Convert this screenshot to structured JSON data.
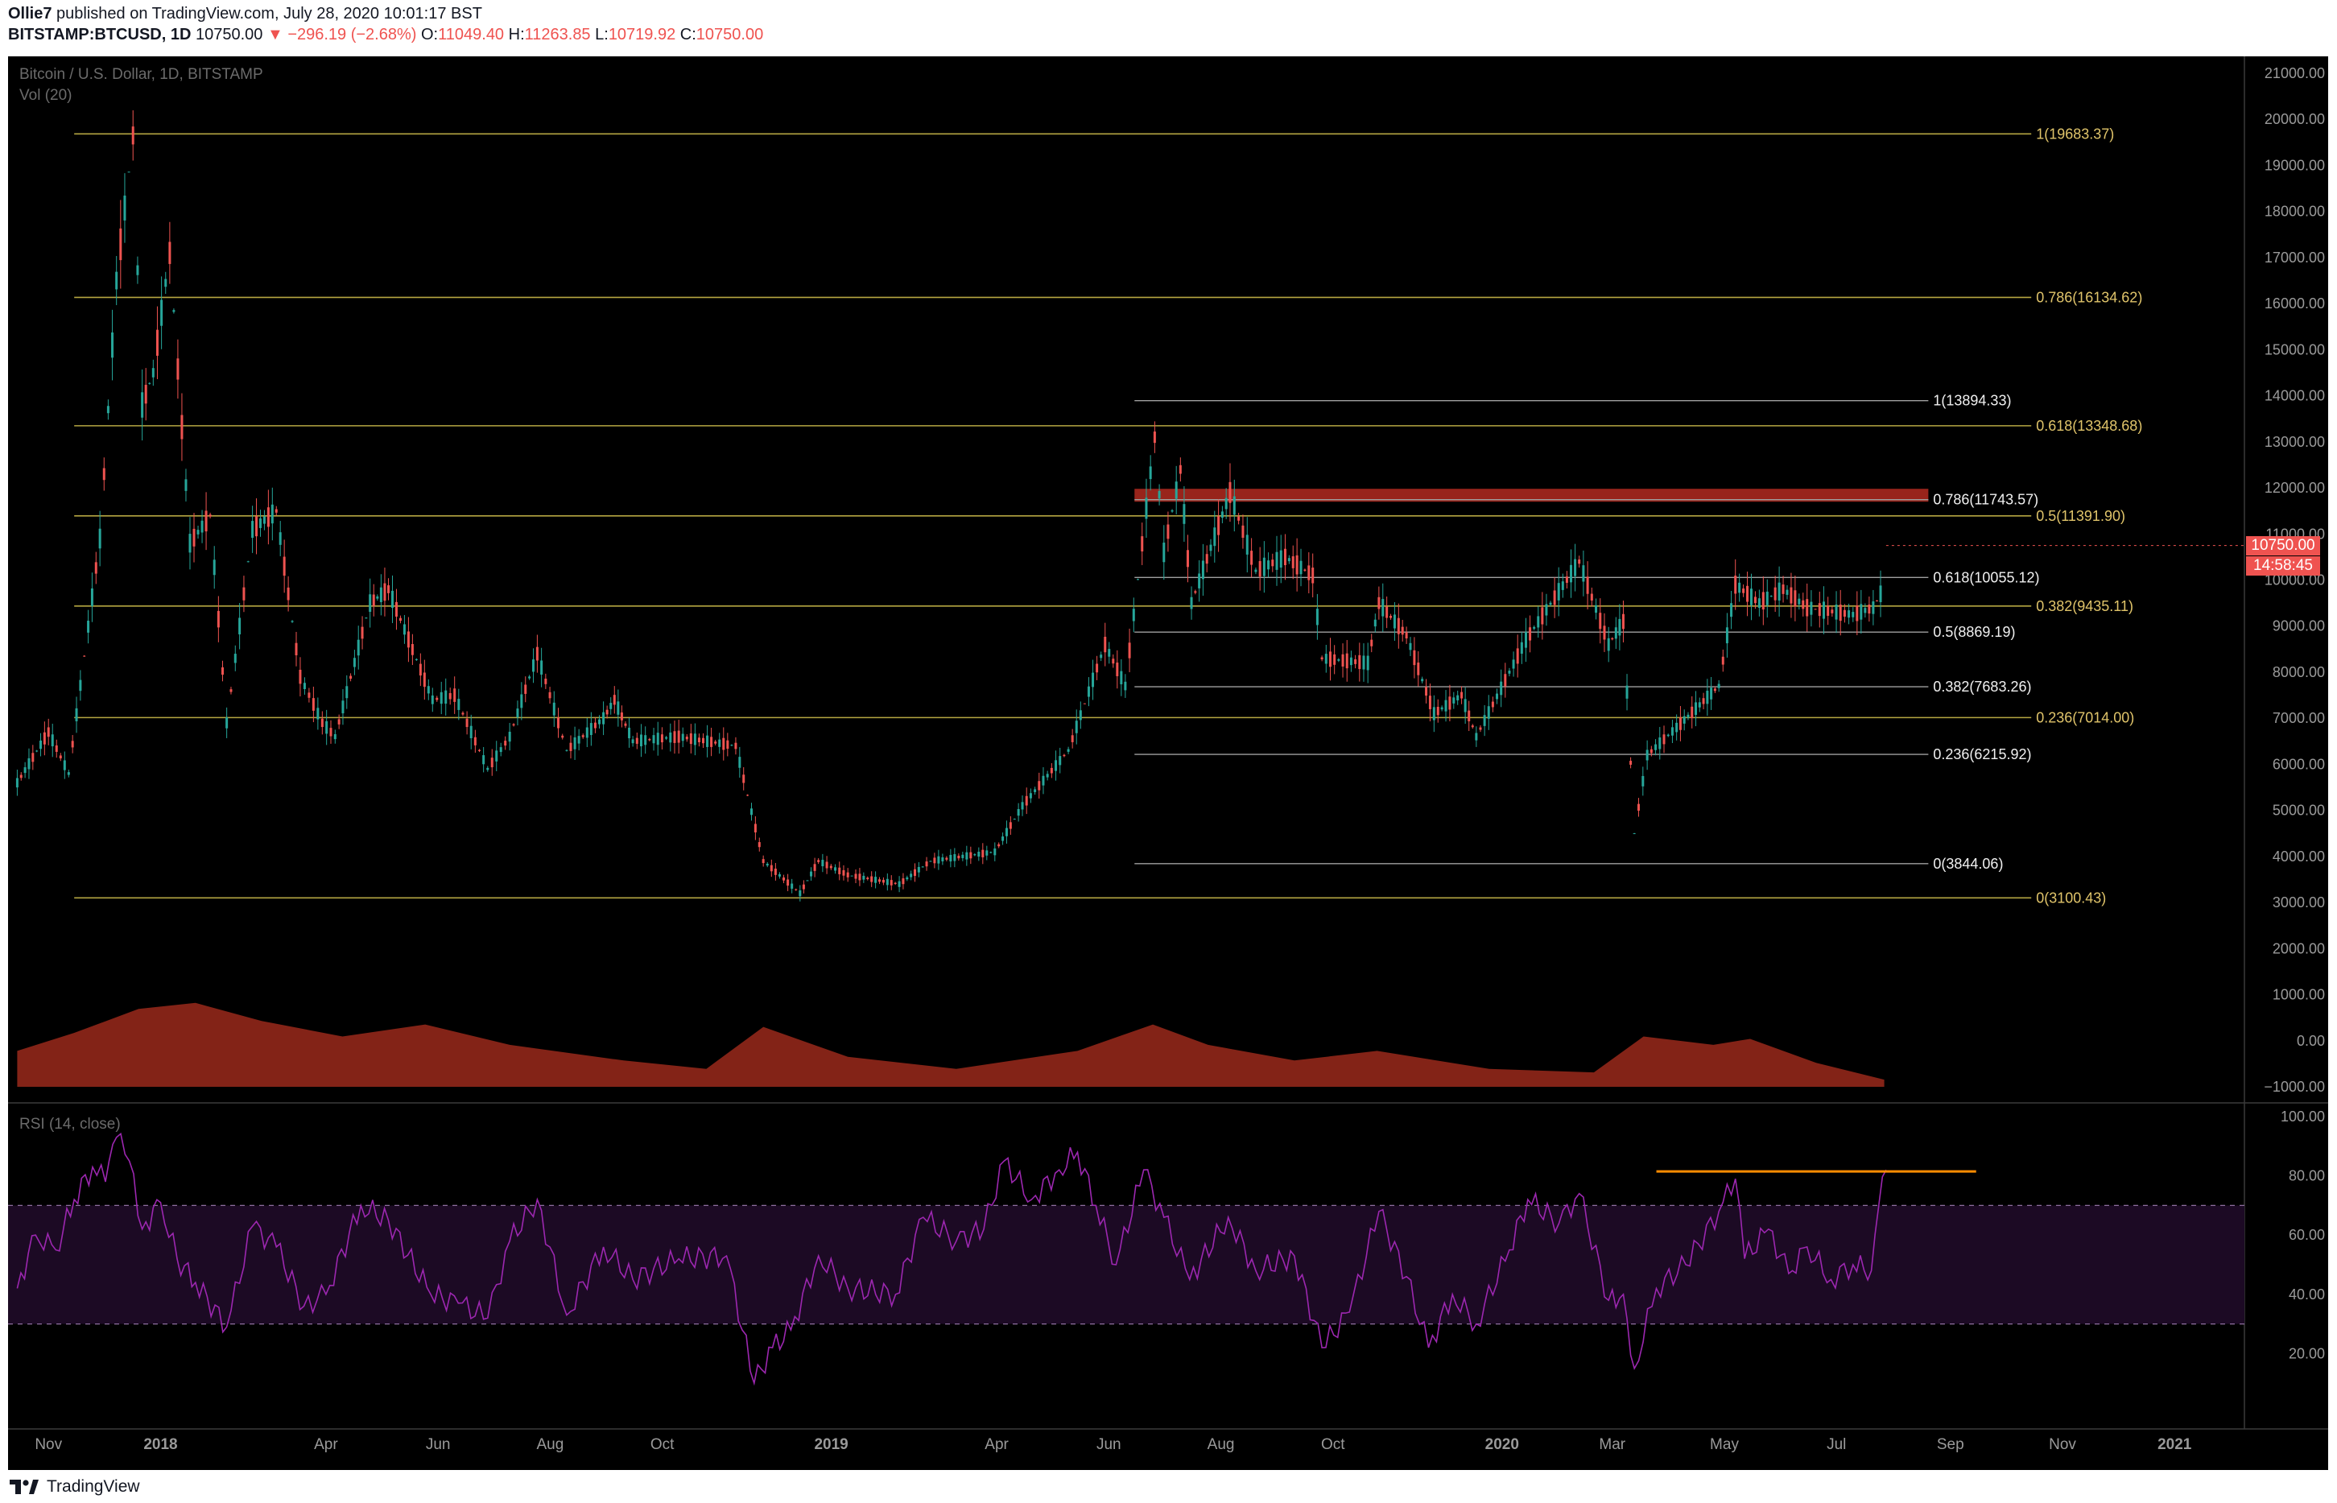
{
  "header": {
    "author": "Ollie7",
    "published": "published on TradingView.com, July 28, 2020 10:01:17 BST",
    "symbol": "BITSTAMP:BTCUSD, 1D",
    "last": "10750.00",
    "change": "−296.19 (−2.68%)",
    "o_label": "O:",
    "o": "11049.40",
    "h_label": "H:",
    "h": "11263.85",
    "l_label": "L:",
    "l": "10719.92",
    "c_label": "C:",
    "c": "10750.00"
  },
  "legend": {
    "series": "Bitcoin / U.S. Dollar, 1D, BITSTAMP",
    "volume": "Vol (20)",
    "rsi": "RSI (14, close)"
  },
  "price_badge": {
    "price": "10750.00",
    "countdown": "14:58:45"
  },
  "footer": {
    "brand": "TradingView",
    "icon": "tradingview-logo-icon"
  },
  "colors": {
    "background": "#000000",
    "up": "#26a69a",
    "down": "#ef5350",
    "fib_major": "#b5a642",
    "fib_minor": "#a0a0a0",
    "resistance_zone": "#a8281e",
    "rsi_line": "#9c27b0",
    "rsi_band": "#1c0a24",
    "rsi_marker": "#ff8c00"
  },
  "chart_data": [
    {
      "type": "candlestick",
      "title": "Bitcoin / U.S. Dollar, 1D, BITSTAMP",
      "x_ticks": [
        "Nov",
        "2018",
        "Apr",
        "Jun",
        "Aug",
        "Oct",
        "2019",
        "Apr",
        "Jun",
        "Aug",
        "Oct",
        "2020",
        "Mar",
        "May",
        "Jul",
        "Sep",
        "Nov",
        "2021"
      ],
      "y_ticks": [
        "21000.00",
        "20000.00",
        "19000.00",
        "18000.00",
        "17000.00",
        "16000.00",
        "15000.00",
        "14000.00",
        "13000.00",
        "12000.00",
        "11000.00",
        "10000.00",
        "9000.00",
        "8000.00",
        "7000.00",
        "6000.00",
        "5000.00",
        "4000.00",
        "3000.00",
        "2000.00",
        "1000.00",
        "0.00",
        "−1000.00"
      ],
      "ylim": [
        -1000,
        21000
      ],
      "path_points": [
        [
          "2017-10-15",
          5600
        ],
        [
          "2017-11-01",
          6700
        ],
        [
          "2017-11-12",
          5800
        ],
        [
          "2017-11-29",
          10900
        ],
        [
          "2017-12-08",
          16500
        ],
        [
          "2017-12-17",
          19650
        ],
        [
          "2017-12-22",
          13800
        ],
        [
          "2017-12-28",
          14500
        ],
        [
          "2018-01-06",
          17100
        ],
        [
          "2018-01-17",
          10800
        ],
        [
          "2018-01-28",
          11400
        ],
        [
          "2018-02-06",
          6900
        ],
        [
          "2018-02-20",
          11100
        ],
        [
          "2018-03-05",
          11500
        ],
        [
          "2018-03-18",
          7900
        ],
        [
          "2018-03-30",
          6900
        ],
        [
          "2018-04-06",
          6600
        ],
        [
          "2018-04-25",
          9500
        ],
        [
          "2018-05-05",
          9800
        ],
        [
          "2018-05-29",
          7400
        ],
        [
          "2018-06-10",
          7500
        ],
        [
          "2018-06-28",
          5900
        ],
        [
          "2018-07-10",
          6600
        ],
        [
          "2018-07-25",
          8400
        ],
        [
          "2018-08-10",
          6300
        ],
        [
          "2018-08-30",
          7000
        ],
        [
          "2018-09-05",
          7400
        ],
        [
          "2018-09-15",
          6500
        ],
        [
          "2018-10-10",
          6600
        ],
        [
          "2018-11-10",
          6400
        ],
        [
          "2018-11-25",
          3900
        ],
        [
          "2018-12-15",
          3200
        ],
        [
          "2018-12-25",
          3900
        ],
        [
          "2019-01-10",
          3600
        ],
        [
          "2019-02-07",
          3400
        ],
        [
          "2019-02-24",
          3900
        ],
        [
          "2019-03-31",
          4100
        ],
        [
          "2019-04-15",
          5100
        ],
        [
          "2019-05-10",
          6300
        ],
        [
          "2019-05-30",
          8600
        ],
        [
          "2019-06-10",
          7700
        ],
        [
          "2019-06-26",
          13100
        ],
        [
          "2019-07-01",
          10600
        ],
        [
          "2019-07-10",
          12400
        ],
        [
          "2019-07-16",
          9500
        ],
        [
          "2019-08-06",
          11900
        ],
        [
          "2019-08-20",
          10200
        ],
        [
          "2019-09-05",
          10500
        ],
        [
          "2019-09-20",
          10100
        ],
        [
          "2019-09-25",
          8300
        ],
        [
          "2019-10-20",
          8200
        ],
        [
          "2019-10-26",
          9500
        ],
        [
          "2019-11-10",
          8800
        ],
        [
          "2019-11-25",
          7100
        ],
        [
          "2019-12-10",
          7500
        ],
        [
          "2019-12-18",
          6600
        ],
        [
          "2020-01-14",
          8700
        ],
        [
          "2020-02-12",
          10400
        ],
        [
          "2020-02-28",
          8600
        ],
        [
          "2020-03-07",
          9100
        ],
        [
          "2020-03-13",
          4500
        ],
        [
          "2020-03-20",
          6200
        ],
        [
          "2020-04-05",
          6800
        ],
        [
          "2020-04-28",
          7700
        ],
        [
          "2020-05-07",
          9900
        ],
        [
          "2020-05-20",
          9500
        ],
        [
          "2020-06-02",
          9800
        ],
        [
          "2020-06-15",
          9400
        ],
        [
          "2020-07-10",
          9250
        ],
        [
          "2020-07-21",
          9400
        ],
        [
          "2020-07-25",
          9700
        ],
        [
          "2020-07-28",
          10750
        ]
      ],
      "volume_profile": [
        [
          "2017-10-15",
          300
        ],
        [
          "2017-11-15",
          450
        ],
        [
          "2017-12-20",
          650
        ],
        [
          "2018-01-20",
          700
        ],
        [
          "2018-02-25",
          550
        ],
        [
          "2018-04-10",
          420
        ],
        [
          "2018-05-25",
          520
        ],
        [
          "2018-07-10",
          350
        ],
        [
          "2018-09-10",
          220
        ],
        [
          "2018-10-25",
          150
        ],
        [
          "2018-11-25",
          500
        ],
        [
          "2019-01-10",
          250
        ],
        [
          "2019-03-10",
          150
        ],
        [
          "2019-05-15",
          300
        ],
        [
          "2019-06-25",
          520
        ],
        [
          "2019-07-25",
          350
        ],
        [
          "2019-09-10",
          220
        ],
        [
          "2019-10-25",
          300
        ],
        [
          "2019-12-25",
          150
        ],
        [
          "2020-02-20",
          120
        ],
        [
          "2020-03-18",
          420
        ],
        [
          "2020-04-25",
          350
        ],
        [
          "2020-05-15",
          400
        ],
        [
          "2020-06-20",
          200
        ],
        [
          "2020-07-27",
          60
        ]
      ],
      "fib_levels_major": [
        {
          "ratio": "1",
          "price": 19683.37,
          "label": "1(19683.37)"
        },
        {
          "ratio": "0.786",
          "price": 16134.62,
          "label": "0.786(16134.62)"
        },
        {
          "ratio": "0.618",
          "price": 13348.68,
          "label": "0.618(13348.68)"
        },
        {
          "ratio": "0.5",
          "price": 11391.9,
          "label": "0.5(11391.90)"
        },
        {
          "ratio": "0.382",
          "price": 9435.11,
          "label": "0.382(9435.11)"
        },
        {
          "ratio": "0.236",
          "price": 7014.0,
          "label": "0.236(7014.00)"
        },
        {
          "ratio": "0",
          "price": 3100.43,
          "label": "0(3100.43)"
        }
      ],
      "fib_levels_minor": [
        {
          "ratio": "1",
          "price": 13894.33,
          "label": "1(13894.33)"
        },
        {
          "ratio": "0.786",
          "price": 11743.57,
          "label": "0.786(11743.57)"
        },
        {
          "ratio": "0.618",
          "price": 10055.12,
          "label": "0.618(10055.12)"
        },
        {
          "ratio": "0.5",
          "price": 8869.19,
          "label": "0.5(8869.19)"
        },
        {
          "ratio": "0.382",
          "price": 7683.26,
          "label": "0.382(7683.26)"
        },
        {
          "ratio": "0.236",
          "price": 6215.92,
          "label": "0.236(6215.92)"
        },
        {
          "ratio": "0",
          "price": 3844.06,
          "label": "0(3844.06)"
        }
      ],
      "resistance_zone": {
        "from_date": "2019-06-15",
        "to_date": "2020-08-20",
        "low": 11700,
        "high": 11980
      }
    },
    {
      "type": "line",
      "title": "RSI (14, close)",
      "y_ticks": [
        "100.00",
        "80.00",
        "60.00",
        "40.00",
        "20.00"
      ],
      "ylim": [
        0,
        100
      ],
      "bands": [
        30,
        70
      ],
      "points": [
        [
          "2017-10-15",
          42
        ],
        [
          "2017-10-25",
          60
        ],
        [
          "2017-11-05",
          55
        ],
        [
          "2017-11-15",
          72
        ],
        [
          "2017-11-25",
          83
        ],
        [
          "2017-12-02",
          78
        ],
        [
          "2017-12-08",
          93
        ],
        [
          "2017-12-15",
          85
        ],
        [
          "2017-12-22",
          62
        ],
        [
          "2018-01-01",
          71
        ],
        [
          "2018-01-10",
          52
        ],
        [
          "2018-01-20",
          44
        ],
        [
          "2018-02-06",
          29
        ],
        [
          "2018-02-20",
          63
        ],
        [
          "2018-03-05",
          56
        ],
        [
          "2018-03-20",
          36
        ],
        [
          "2018-04-01",
          40
        ],
        [
          "2018-04-20",
          70
        ],
        [
          "2018-05-05",
          65
        ],
        [
          "2018-05-28",
          40
        ],
        [
          "2018-06-12",
          37
        ],
        [
          "2018-06-28",
          32
        ],
        [
          "2018-07-10",
          58
        ],
        [
          "2018-07-25",
          72
        ],
        [
          "2018-08-10",
          33
        ],
        [
          "2018-08-30",
          56
        ],
        [
          "2018-09-15",
          45
        ],
        [
          "2018-10-10",
          52
        ],
        [
          "2018-11-05",
          53
        ],
        [
          "2018-11-20",
          10
        ],
        [
          "2018-11-30",
          22
        ],
        [
          "2018-12-10",
          28
        ],
        [
          "2018-12-25",
          53
        ],
        [
          "2019-01-10",
          42
        ],
        [
          "2019-02-05",
          40
        ],
        [
          "2019-02-20",
          66
        ],
        [
          "2019-03-10",
          58
        ],
        [
          "2019-03-25",
          62
        ],
        [
          "2019-04-05",
          85
        ],
        [
          "2019-04-20",
          72
        ],
        [
          "2019-05-05",
          82
        ],
        [
          "2019-05-15",
          88
        ],
        [
          "2019-05-25",
          70
        ],
        [
          "2019-06-05",
          50
        ],
        [
          "2019-06-20",
          82
        ],
        [
          "2019-07-01",
          66
        ],
        [
          "2019-07-15",
          45
        ],
        [
          "2019-08-05",
          66
        ],
        [
          "2019-08-20",
          48
        ],
        [
          "2019-09-10",
          53
        ],
        [
          "2019-09-25",
          22
        ],
        [
          "2019-10-10",
          34
        ],
        [
          "2019-10-26",
          68
        ],
        [
          "2019-11-10",
          46
        ],
        [
          "2019-11-22",
          22
        ],
        [
          "2019-12-05",
          40
        ],
        [
          "2019-12-18",
          30
        ],
        [
          "2020-01-05",
          55
        ],
        [
          "2020-01-15",
          72
        ],
        [
          "2020-02-01",
          64
        ],
        [
          "2020-02-12",
          74
        ],
        [
          "2020-02-28",
          38
        ],
        [
          "2020-03-07",
          40
        ],
        [
          "2020-03-13",
          15
        ],
        [
          "2020-03-25",
          42
        ],
        [
          "2020-04-10",
          50
        ],
        [
          "2020-04-28",
          68
        ],
        [
          "2020-05-07",
          79
        ],
        [
          "2020-05-12",
          52
        ],
        [
          "2020-05-25",
          62
        ],
        [
          "2020-06-05",
          47
        ],
        [
          "2020-06-15",
          56
        ],
        [
          "2020-06-28",
          45
        ],
        [
          "2020-07-10",
          50
        ],
        [
          "2020-07-20",
          48
        ],
        [
          "2020-07-24",
          70
        ],
        [
          "2020-07-28",
          82
        ]
      ],
      "marker_level": {
        "value": 81.5,
        "from_date": "2020-03-25",
        "to_date": "2020-09-15"
      }
    }
  ]
}
